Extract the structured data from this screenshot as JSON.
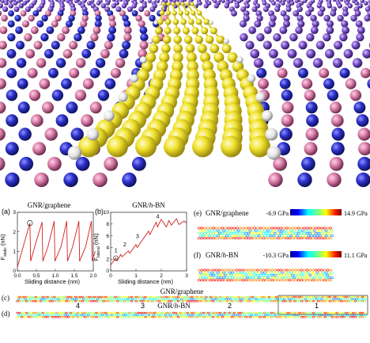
{
  "figure": {
    "panel_a": {
      "label": "(a)",
      "title": "GNR/graphene",
      "ylabel": "F",
      "ysub": "static",
      "xlabel": "Sliding distance (nm)",
      "yunit": "(nN)"
    },
    "panel_b": {
      "label": "(b)",
      "title": "GNR/h-BN",
      "ylabel": "F",
      "ysub": "lateral",
      "xlabel": "Sliding distance (nm)",
      "yunit": "(nN)",
      "markers": [
        "1",
        "2",
        "3",
        "4"
      ]
    },
    "panel_c": {
      "label": "(c)",
      "title": "GNR/graphene"
    },
    "panel_d": {
      "label": "(d)",
      "title": "GNR/h-BN",
      "markers": [
        "4",
        "3",
        "2",
        "1"
      ]
    },
    "panel_e": {
      "label": "(e)",
      "title": "GNR/graphene",
      "min": "-6.9 GPa",
      "max": "14.9 GPa"
    },
    "panel_f": {
      "label": "(f)",
      "title": "GNR/h-BN",
      "min": "-10.3 GPa",
      "max": "11.1 GPa"
    }
  },
  "colors": {
    "boron": "#2b2fc9",
    "nitrogen": "#d77aa6",
    "graphene_purple": "#7a4fc9",
    "gnr": "#e8dc25",
    "hydrogen": "#f2f2f2",
    "curve": "#d21f1f"
  },
  "chart_data": [
    {
      "type": "line",
      "title": "GNR/graphene",
      "xlabel": "Sliding distance (nm)",
      "ylabel": "F static (nN)",
      "xlim": [
        0,
        2
      ],
      "ylim": [
        0,
        3
      ],
      "xticks": [
        "0.0",
        "0.5",
        "1.0",
        "1.5",
        "2.0"
      ],
      "yticks": [
        "0",
        "1",
        "2",
        "3"
      ],
      "series": [
        {
          "x": [
            0,
            0.33,
            0.35,
            0.45,
            0.65,
            0.67,
            0.8,
            0.97,
            0.99,
            1.15,
            1.3,
            1.32,
            1.45,
            1.62,
            1.64,
            1.8,
            1.95,
            1.97,
            2.05
          ],
          "y": [
            0.2,
            2.45,
            0.5,
            1.2,
            2.5,
            0.5,
            1.2,
            2.55,
            0.5,
            1.25,
            2.55,
            0.5,
            1.2,
            2.55,
            0.5,
            1.25,
            2.55,
            0.5,
            1.0
          ]
        }
      ]
    },
    {
      "type": "line",
      "title": "GNR/h-BN",
      "xlabel": "Sliding distance (nm)",
      "ylabel": "F lateral (nN)",
      "xlim": [
        0,
        3
      ],
      "ylim": [
        0,
        10
      ],
      "xticks": [
        "0",
        "1",
        "2",
        "3"
      ],
      "yticks": [
        "0",
        "2",
        "4",
        "6",
        "8",
        "10"
      ],
      "series": [
        {
          "x": [
            0,
            0.2,
            0.25,
            0.4,
            0.45,
            0.7,
            0.75,
            1.0,
            1.05,
            1.5,
            1.55,
            1.8,
            1.85,
            2.0,
            2.2,
            2.3,
            2.4,
            2.6,
            2.7,
            2.9,
            3.0
          ],
          "y": [
            1.0,
            2.2,
            1.7,
            2.8,
            2.4,
            3.4,
            3.0,
            4.5,
            4.0,
            6.8,
            6.2,
            8.3,
            7.5,
            8.8,
            7.5,
            8.6,
            7.8,
            8.9,
            7.9,
            8.5,
            8.2
          ]
        }
      ]
    }
  ]
}
